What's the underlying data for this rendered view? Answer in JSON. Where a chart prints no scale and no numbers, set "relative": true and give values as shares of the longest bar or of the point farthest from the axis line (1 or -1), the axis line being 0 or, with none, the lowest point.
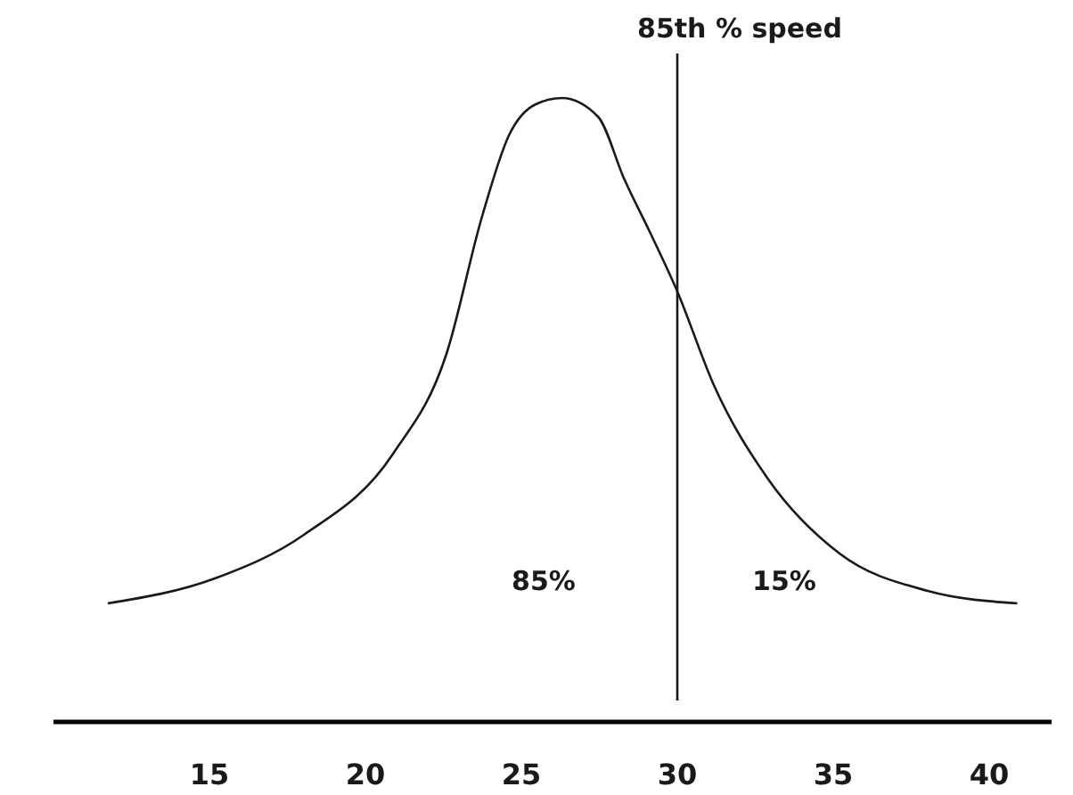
{
  "chart_data": {
    "type": "line",
    "relative": true,
    "x": [
      11.74,
      15.17,
      18.03,
      20.89,
      22.6,
      23.74,
      24.6,
      25.46,
      26.3,
      27.46,
      28.3,
      29.17,
      30,
      31.17,
      32.9,
      35.2,
      38.03,
      40.9
    ],
    "xlim": [
      10,
      42
    ],
    "xticks": [
      15,
      20,
      25,
      30,
      35,
      40
    ],
    "series": [
      {
        "color": "#1a1a1a",
        "values": [
          0.19,
          0.23,
          0.3,
          0.43,
          0.59,
          0.81,
          0.94,
          0.99,
          1,
          0.97,
          0.87,
          0.78,
          0.69,
          0.54,
          0.39,
          0.27,
          0.21,
          0.19
        ]
      }
    ],
    "ref_lines": [
      {
        "axis": "x",
        "value": 30,
        "label": "85th % speed",
        "color": "#1a1a1a"
      }
    ],
    "annotations": [
      "85%",
      "15%"
    ],
    "grid": false,
    "marker": "none",
    "line_style": "solid"
  }
}
